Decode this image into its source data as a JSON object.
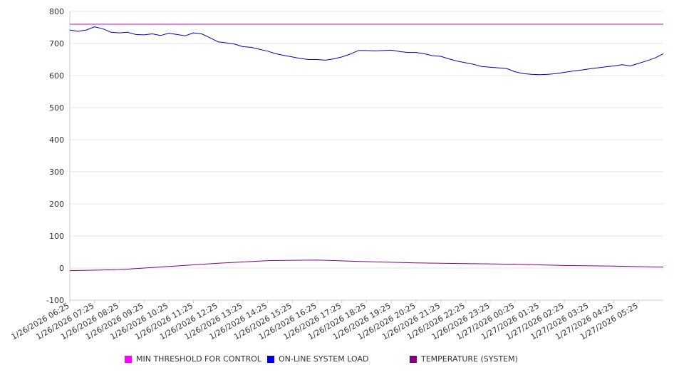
{
  "chart_data": {
    "type": "line",
    "title": "",
    "xlabel": "",
    "ylabel": "",
    "ylim": [
      -100,
      800
    ],
    "yticks": [
      -100,
      0,
      100,
      200,
      300,
      400,
      500,
      600,
      700,
      800
    ],
    "xlim": [
      "1/26/2026 06:25",
      "1/27/2026 06:25"
    ],
    "grid": true,
    "legend_position": "bottom",
    "x_tick_labels": [
      "1/26/2026 06:25",
      "1/26/2026 07:25",
      "1/26/2026 08:25",
      "1/26/2026 09:25",
      "1/26/2026 10:25",
      "1/26/2026 11:25",
      "1/26/2026 12:25",
      "1/26/2026 13:25",
      "1/26/2026 14:25",
      "1/26/2026 15:25",
      "1/26/2026 16:25",
      "1/26/2026 17:25",
      "1/26/2026 18:25",
      "1/26/2026 19:25",
      "1/26/2026 20:25",
      "1/26/2026 21:25",
      "1/26/2026 22:25",
      "1/26/2026 23:25",
      "1/27/2026 00:25",
      "1/27/2026 01:25",
      "1/27/2026 02:25",
      "1/27/2026 03:25",
      "1/27/2026 04:25",
      "1/27/2026 05:25"
    ],
    "series": [
      {
        "name": "MIN THRESHOLD FOR CONTROL",
        "color": "#cc00cc",
        "x": [
          "1/26/2026 06:25",
          "1/27/2026 06:25"
        ],
        "y": [
          760,
          760
        ]
      },
      {
        "name": "ON-LINE SYSTEM LOAD",
        "color": "#0000cc",
        "x": [
          "1/26/2026 06:25",
          "1/26/2026 06:45",
          "1/26/2026 07:05",
          "1/26/2026 07:25",
          "1/26/2026 07:45",
          "1/26/2026 08:05",
          "1/26/2026 08:25",
          "1/26/2026 08:45",
          "1/26/2026 09:05",
          "1/26/2026 09:25",
          "1/26/2026 09:45",
          "1/26/2026 10:05",
          "1/26/2026 10:25",
          "1/26/2026 10:45",
          "1/26/2026 11:05",
          "1/26/2026 11:25",
          "1/26/2026 11:45",
          "1/26/2026 12:05",
          "1/26/2026 12:25",
          "1/26/2026 12:45",
          "1/26/2026 13:05",
          "1/26/2026 13:25",
          "1/26/2026 13:45",
          "1/26/2026 14:05",
          "1/26/2026 14:25",
          "1/26/2026 14:45",
          "1/26/2026 15:05",
          "1/26/2026 15:25",
          "1/26/2026 15:45",
          "1/26/2026 16:05",
          "1/26/2026 16:25",
          "1/26/2026 16:45",
          "1/26/2026 17:05",
          "1/26/2026 17:25",
          "1/26/2026 17:45",
          "1/26/2026 18:05",
          "1/26/2026 18:25",
          "1/26/2026 18:45",
          "1/26/2026 19:05",
          "1/26/2026 19:25",
          "1/26/2026 19:45",
          "1/26/2026 20:05",
          "1/26/2026 20:25",
          "1/26/2026 20:45",
          "1/26/2026 21:05",
          "1/26/2026 21:25",
          "1/26/2026 21:45",
          "1/26/2026 22:05",
          "1/26/2026 22:25",
          "1/26/2026 22:45",
          "1/26/2026 23:05",
          "1/26/2026 23:25",
          "1/26/2026 23:45",
          "1/27/2026 00:05",
          "1/27/2026 00:25",
          "1/27/2026 00:45",
          "1/27/2026 01:05",
          "1/27/2026 01:25",
          "1/27/2026 01:45",
          "1/27/2026 02:05",
          "1/27/2026 02:25",
          "1/27/2026 02:45",
          "1/27/2026 03:05",
          "1/27/2026 03:25",
          "1/27/2026 03:45",
          "1/27/2026 04:05",
          "1/27/2026 04:25",
          "1/27/2026 04:45",
          "1/27/2026 05:05",
          "1/27/2026 05:25",
          "1/27/2026 05:45",
          "1/27/2026 06:05",
          "1/27/2026 06:25"
        ],
        "y": [
          742,
          738,
          742,
          752,
          746,
          735,
          733,
          735,
          728,
          727,
          730,
          725,
          732,
          728,
          724,
          733,
          730,
          718,
          705,
          702,
          698,
          690,
          688,
          682,
          676,
          668,
          663,
          658,
          653,
          650,
          650,
          648,
          652,
          658,
          667,
          678,
          678,
          677,
          678,
          679,
          675,
          672,
          672,
          668,
          662,
          660,
          652,
          645,
          640,
          635,
          628,
          626,
          624,
          622,
          612,
          606,
          604,
          603,
          604,
          606,
          610,
          614,
          617,
          621,
          624,
          627,
          630,
          634,
          630,
          638,
          646,
          655,
          668
        ]
      },
      {
        "name": "TEMPERATURE (SYSTEM)",
        "color": "#800080",
        "x": [
          "1/26/2026 06:25",
          "1/26/2026 08:25",
          "1/26/2026 10:25",
          "1/26/2026 12:25",
          "1/26/2026 14:25",
          "1/26/2026 16:25",
          "1/26/2026 18:25",
          "1/26/2026 20:25",
          "1/26/2026 22:25",
          "1/27/2026 00:25",
          "1/27/2026 02:25",
          "1/27/2026 04:25",
          "1/27/2026 06:25"
        ],
        "y": [
          -8,
          -5,
          5,
          15,
          23,
          25,
          20,
          16,
          14,
          12,
          8,
          6,
          3
        ]
      }
    ]
  }
}
